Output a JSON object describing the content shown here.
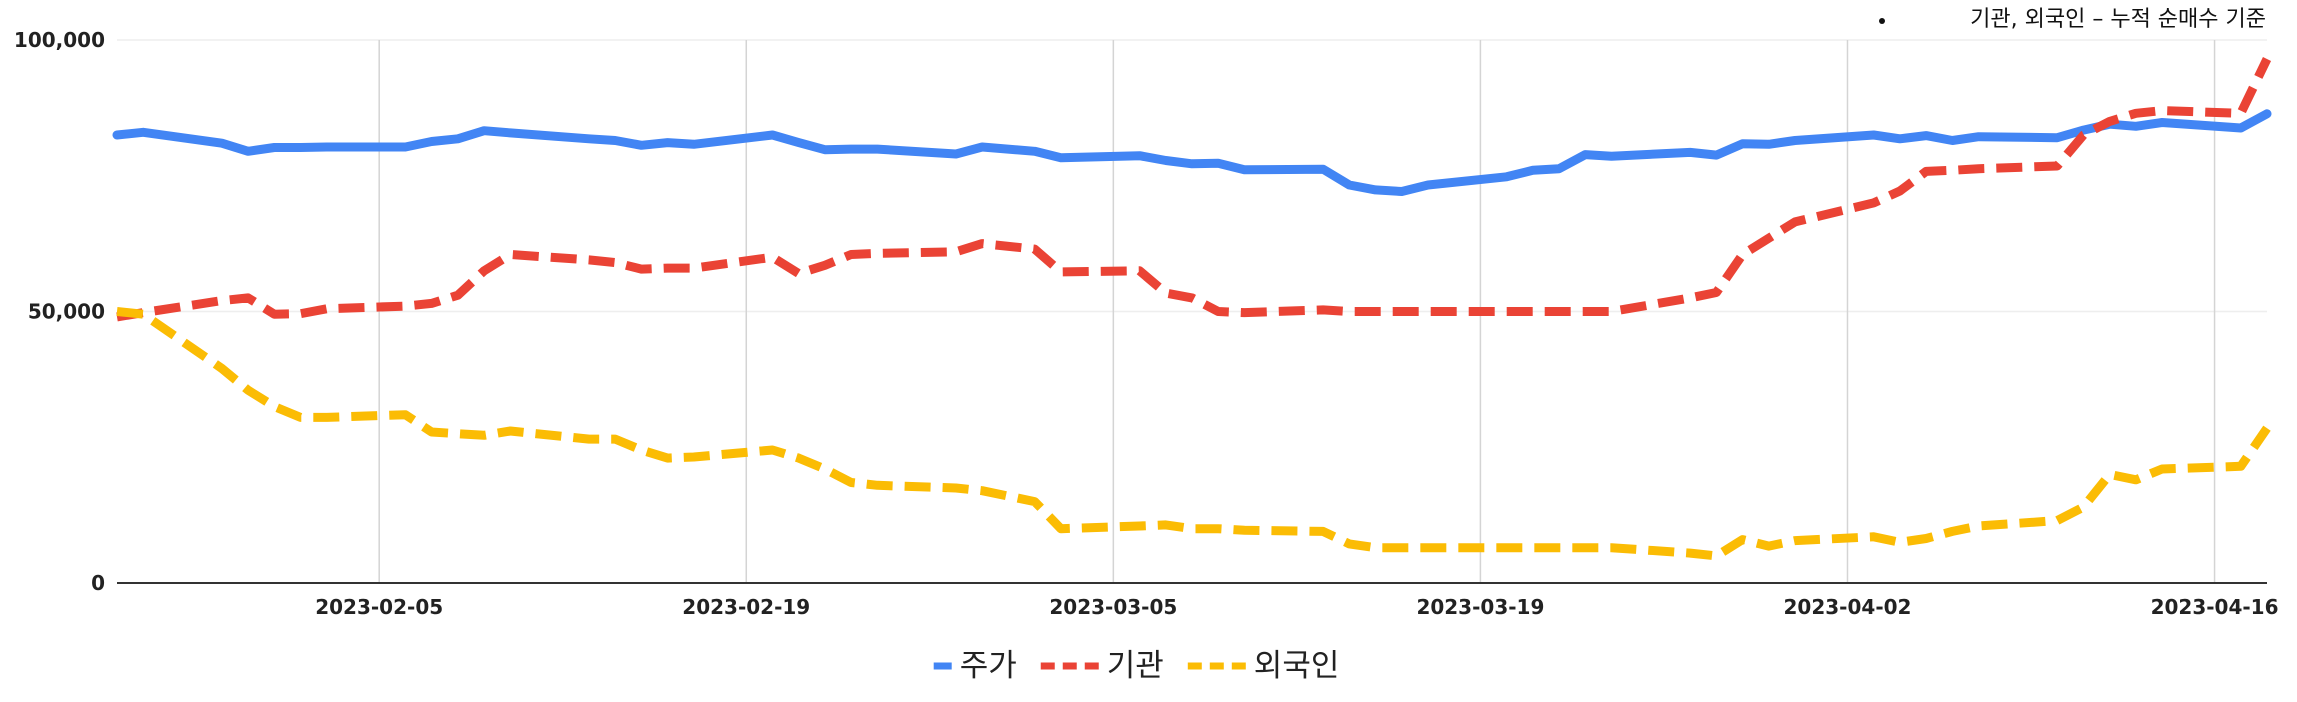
{
  "chart_data": {
    "type": "line",
    "title": "",
    "xlabel": "",
    "ylabel": "",
    "ylim": [
      0,
      100000
    ],
    "y_ticks": [
      "0",
      "50,000",
      "100,000"
    ],
    "x_tick_labels": [
      "2023-02-05",
      "2023-02-19",
      "2023-03-05",
      "2023-03-19",
      "2023-04-02",
      "2023-04-16"
    ],
    "x_range": [
      "2023-01-26",
      "2023-04-18"
    ],
    "grid": true,
    "legend_position": "bottom",
    "annotation": "기관, 외국인 – 누적 순매수 기준",
    "series": [
      {
        "name": "주가",
        "color": "#4285f4",
        "style": "solid",
        "points": [
          [
            "2023-01-26",
            82500
          ],
          [
            "2023-01-27",
            83000
          ],
          [
            "2023-01-30",
            81000
          ],
          [
            "2023-01-31",
            79500
          ],
          [
            "2023-02-01",
            80200
          ],
          [
            "2023-02-02",
            80200
          ],
          [
            "2023-02-03",
            80300
          ],
          [
            "2023-02-06",
            80300
          ],
          [
            "2023-02-07",
            81300
          ],
          [
            "2023-02-08",
            81800
          ],
          [
            "2023-02-09",
            83300
          ],
          [
            "2023-02-10",
            82900
          ],
          [
            "2023-02-13",
            81800
          ],
          [
            "2023-02-14",
            81500
          ],
          [
            "2023-02-15",
            80600
          ],
          [
            "2023-02-16",
            81100
          ],
          [
            "2023-02-17",
            80800
          ],
          [
            "2023-02-20",
            82500
          ],
          [
            "2023-02-21",
            81100
          ],
          [
            "2023-02-22",
            79800
          ],
          [
            "2023-02-23",
            79900
          ],
          [
            "2023-02-24",
            79900
          ],
          [
            "2023-02-27",
            79000
          ],
          [
            "2023-02-28",
            80300
          ],
          [
            "2023-03-02",
            79500
          ],
          [
            "2023-03-03",
            78300
          ],
          [
            "2023-03-06",
            78700
          ],
          [
            "2023-03-07",
            77800
          ],
          [
            "2023-03-08",
            77200
          ],
          [
            "2023-03-09",
            77300
          ],
          [
            "2023-03-10",
            76100
          ],
          [
            "2023-03-13",
            76200
          ],
          [
            "2023-03-14",
            73300
          ],
          [
            "2023-03-15",
            72400
          ],
          [
            "2023-03-16",
            72100
          ],
          [
            "2023-03-17",
            73300
          ],
          [
            "2023-03-20",
            74800
          ],
          [
            "2023-03-21",
            76000
          ],
          [
            "2023-03-22",
            76300
          ],
          [
            "2023-03-23",
            78900
          ],
          [
            "2023-03-24",
            78600
          ],
          [
            "2023-03-27",
            79300
          ],
          [
            "2023-03-28",
            78800
          ],
          [
            "2023-03-29",
            80900
          ],
          [
            "2023-03-30",
            80800
          ],
          [
            "2023-03-31",
            81500
          ],
          [
            "2023-04-03",
            82500
          ],
          [
            "2023-04-04",
            81800
          ],
          [
            "2023-04-05",
            82400
          ],
          [
            "2023-04-06",
            81500
          ],
          [
            "2023-04-07",
            82200
          ],
          [
            "2023-04-10",
            82000
          ],
          [
            "2023-04-11",
            83400
          ],
          [
            "2023-04-12",
            84500
          ],
          [
            "2023-04-13",
            84100
          ],
          [
            "2023-04-14",
            84800
          ],
          [
            "2023-04-17",
            83800
          ],
          [
            "2023-04-18",
            86400
          ]
        ]
      },
      {
        "name": "기관",
        "color": "#ea4335",
        "style": "dashed",
        "points": [
          [
            "2023-01-26",
            49000
          ],
          [
            "2023-01-27",
            49800
          ],
          [
            "2023-01-30",
            52000
          ],
          [
            "2023-01-31",
            52500
          ],
          [
            "2023-02-01",
            49500
          ],
          [
            "2023-02-02",
            49600
          ],
          [
            "2023-02-03",
            50500
          ],
          [
            "2023-02-06",
            51000
          ],
          [
            "2023-02-07",
            51500
          ],
          [
            "2023-02-08",
            53000
          ],
          [
            "2023-02-09",
            57500
          ],
          [
            "2023-02-10",
            60500
          ],
          [
            "2023-02-13",
            59500
          ],
          [
            "2023-02-14",
            59000
          ],
          [
            "2023-02-15",
            57800
          ],
          [
            "2023-02-16",
            58000
          ],
          [
            "2023-02-17",
            58000
          ],
          [
            "2023-02-20",
            60000
          ],
          [
            "2023-02-21",
            57000
          ],
          [
            "2023-02-22",
            58500
          ],
          [
            "2023-02-23",
            60500
          ],
          [
            "2023-02-24",
            60700
          ],
          [
            "2023-02-27",
            61000
          ],
          [
            "2023-02-28",
            62500
          ],
          [
            "2023-03-02",
            61500
          ],
          [
            "2023-03-03",
            57300
          ],
          [
            "2023-03-06",
            57500
          ],
          [
            "2023-03-07",
            53400
          ],
          [
            "2023-03-08",
            52500
          ],
          [
            "2023-03-09",
            50000
          ],
          [
            "2023-03-10",
            49800
          ],
          [
            "2023-03-13",
            50300
          ],
          [
            "2023-03-14",
            50000
          ],
          [
            "2023-03-15",
            50000
          ],
          [
            "2023-03-16",
            50000
          ],
          [
            "2023-03-17",
            50000
          ],
          [
            "2023-03-20",
            50000
          ],
          [
            "2023-03-21",
            50000
          ],
          [
            "2023-03-22",
            50000
          ],
          [
            "2023-03-23",
            50000
          ],
          [
            "2023-03-24",
            50000
          ],
          [
            "2023-03-27",
            52500
          ],
          [
            "2023-03-28",
            53500
          ],
          [
            "2023-03-29",
            60500
          ],
          [
            "2023-03-30",
            63500
          ],
          [
            "2023-03-31",
            66500
          ],
          [
            "2023-04-03",
            70000
          ],
          [
            "2023-04-04",
            72200
          ],
          [
            "2023-04-05",
            75800
          ],
          [
            "2023-04-06",
            76000
          ],
          [
            "2023-04-07",
            76300
          ],
          [
            "2023-04-10",
            76800
          ],
          [
            "2023-04-11",
            82500
          ],
          [
            "2023-04-12",
            85000
          ],
          [
            "2023-04-13",
            86500
          ],
          [
            "2023-04-14",
            87000
          ],
          [
            "2023-04-17",
            86500
          ],
          [
            "2023-04-18",
            96500
          ]
        ]
      },
      {
        "name": "외국인",
        "color": "#fbbc04",
        "style": "dashed",
        "points": [
          [
            "2023-01-26",
            50000
          ],
          [
            "2023-01-27",
            49500
          ],
          [
            "2023-01-30",
            39500
          ],
          [
            "2023-01-31",
            35500
          ],
          [
            "2023-02-01",
            32500
          ],
          [
            "2023-02-02",
            30500
          ],
          [
            "2023-02-03",
            30500
          ],
          [
            "2023-02-06",
            31000
          ],
          [
            "2023-02-07",
            27800
          ],
          [
            "2023-02-08",
            27500
          ],
          [
            "2023-02-09",
            27200
          ],
          [
            "2023-02-10",
            28000
          ],
          [
            "2023-02-13",
            26500
          ],
          [
            "2023-02-14",
            26500
          ],
          [
            "2023-02-15",
            24500
          ],
          [
            "2023-02-16",
            23000
          ],
          [
            "2023-02-17",
            23200
          ],
          [
            "2023-02-20",
            24500
          ],
          [
            "2023-02-21",
            23000
          ],
          [
            "2023-02-22",
            21000
          ],
          [
            "2023-02-23",
            18500
          ],
          [
            "2023-02-24",
            18000
          ],
          [
            "2023-02-27",
            17500
          ],
          [
            "2023-02-28",
            17000
          ],
          [
            "2023-03-02",
            15000
          ],
          [
            "2023-03-03",
            10000
          ],
          [
            "2023-03-06",
            10500
          ],
          [
            "2023-03-07",
            10700
          ],
          [
            "2023-03-08",
            10000
          ],
          [
            "2023-03-09",
            10000
          ],
          [
            "2023-03-10",
            9700
          ],
          [
            "2023-03-13",
            9500
          ],
          [
            "2023-03-14",
            7200
          ],
          [
            "2023-03-15",
            6500
          ],
          [
            "2023-03-16",
            6500
          ],
          [
            "2023-03-17",
            6500
          ],
          [
            "2023-03-20",
            6500
          ],
          [
            "2023-03-21",
            6500
          ],
          [
            "2023-03-22",
            6500
          ],
          [
            "2023-03-23",
            6500
          ],
          [
            "2023-03-24",
            6500
          ],
          [
            "2023-03-27",
            5500
          ],
          [
            "2023-03-28",
            5000
          ],
          [
            "2023-03-29",
            8000
          ],
          [
            "2023-03-30",
            6800
          ],
          [
            "2023-03-31",
            7800
          ],
          [
            "2023-04-03",
            8500
          ],
          [
            "2023-04-04",
            7500
          ],
          [
            "2023-04-05",
            8200
          ],
          [
            "2023-04-06",
            9500
          ],
          [
            "2023-04-07",
            10500
          ],
          [
            "2023-04-10",
            11500
          ],
          [
            "2023-04-11",
            14000
          ],
          [
            "2023-04-12",
            20000
          ],
          [
            "2023-04-13",
            19000
          ],
          [
            "2023-04-14",
            21000
          ],
          [
            "2023-04-17",
            21500
          ],
          [
            "2023-04-18",
            28500
          ]
        ]
      }
    ]
  }
}
